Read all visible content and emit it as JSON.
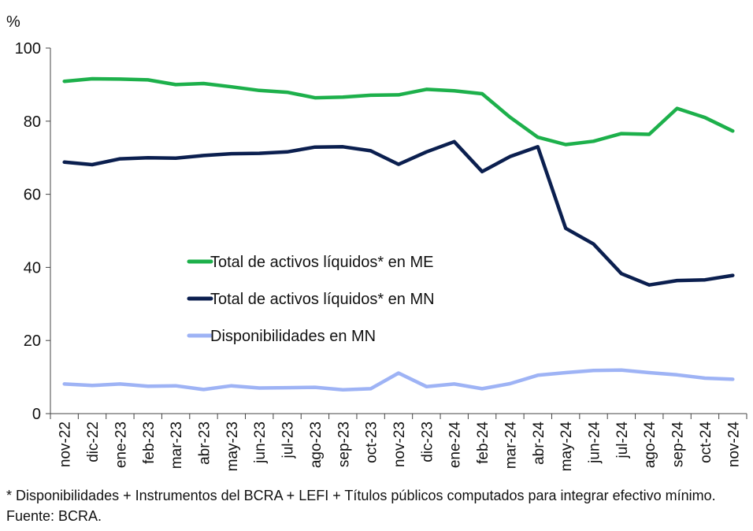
{
  "chart_data": {
    "type": "line",
    "title": "",
    "xlabel": "",
    "ylabel": "%",
    "ylim": [
      0,
      100
    ],
    "yticks": [
      0,
      20,
      40,
      60,
      80,
      100
    ],
    "grid": false,
    "legend_position": "center-left",
    "categories": [
      "nov-22",
      "dic-22",
      "ene-23",
      "feb-23",
      "mar-23",
      "abr-23",
      "may-23",
      "jun-23",
      "jul-23",
      "ago-23",
      "sep-23",
      "oct-23",
      "nov-23",
      "dic-23",
      "ene-24",
      "feb-24",
      "mar-24",
      "abr-24",
      "may-24",
      "jun-24",
      "jul-24",
      "ago-24",
      "sep-24",
      "oct-24",
      "nov-24"
    ],
    "series": [
      {
        "name": "Total de activos líquidos* en ME",
        "color": "#1db04b",
        "values": [
          90.9,
          91.6,
          91.5,
          91.3,
          90.0,
          90.3,
          89.4,
          88.4,
          87.9,
          86.4,
          86.6,
          87.1,
          87.2,
          88.7,
          88.3,
          87.5,
          81.1,
          75.6,
          73.6,
          74.5,
          76.6,
          76.4,
          83.5,
          81.0,
          77.3
        ]
      },
      {
        "name": "Total de activos líquidos* en MN",
        "color": "#0b1f4f",
        "values": [
          68.8,
          68.1,
          69.7,
          70.0,
          69.9,
          70.6,
          71.1,
          71.2,
          71.6,
          72.9,
          73.0,
          71.9,
          68.2,
          71.6,
          74.4,
          66.2,
          70.3,
          73.0,
          50.7,
          46.4,
          38.3,
          35.2,
          36.4,
          36.6,
          37.8
        ]
      },
      {
        "name": "Disponibilidades en MN",
        "color": "#9eb3f5",
        "values": [
          8.1,
          7.7,
          8.1,
          7.5,
          7.6,
          6.6,
          7.6,
          7.0,
          7.1,
          7.2,
          6.5,
          6.8,
          11.1,
          7.4,
          8.1,
          6.8,
          8.2,
          10.5,
          11.2,
          11.8,
          11.9,
          11.2,
          10.6,
          9.7,
          9.4
        ]
      }
    ]
  },
  "footnote": "* Disponibilidades + Instrumentos del BCRA + LEFI + Títulos públicos computados para integrar efectivo mínimo. Fuente: BCRA."
}
